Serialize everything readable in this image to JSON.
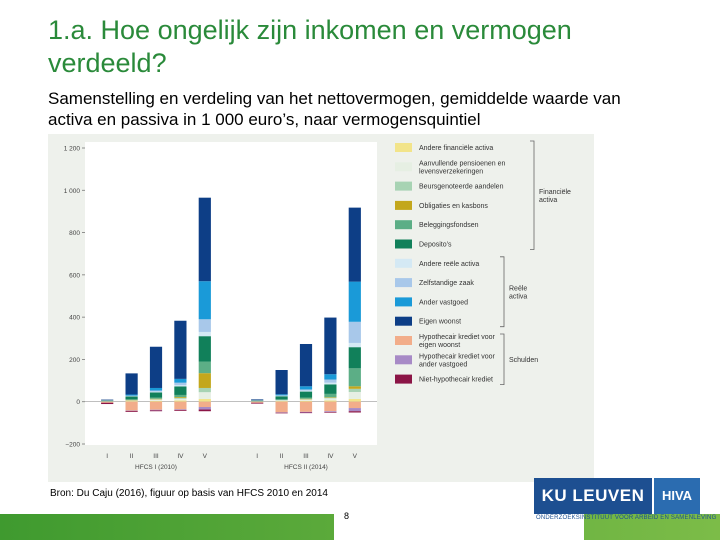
{
  "slide": {
    "title": "1.a. Hoe ongelijk zijn inkomen en vermogen verdeeld?",
    "subtitle": "Samenstelling en verdeling van het nettovermogen, gemiddelde waarde van activa en passiva in 1 000 euro’s, naar vermogensquintiel",
    "source": "Bron: Du Caju (2016), figuur op basis van HFCS 2010 en 2014",
    "page_number": "8",
    "logo_main": "KU LEUVEN",
    "logo_side": "HIVA",
    "logo_subtext": "ONDERZOEKSINSTITUUT VOOR ARBEID EN SAMENLEVING"
  },
  "chart_data": {
    "type": "bar",
    "stacked": true,
    "ylim": [
      -200,
      1200
    ],
    "yticks": [
      -200,
      0,
      200,
      400,
      600,
      800,
      1000,
      1200
    ],
    "ytick_labels": [
      "−200",
      "0",
      "200",
      "400",
      "600",
      "800",
      "1 000",
      "1 200"
    ],
    "groups": [
      {
        "label": "HFCS I (2010)",
        "categories": [
          "I",
          "II",
          "III",
          "IV",
          "V"
        ]
      },
      {
        "label": "HFCS II (2014)",
        "categories": [
          "I",
          "II",
          "III",
          "IV",
          "V"
        ]
      }
    ],
    "series": [
      {
        "name": "Andere financiële activa",
        "color": "#f2e48a",
        "values": [
          1,
          3,
          4,
          6,
          13,
          1,
          3,
          4,
          6,
          13
        ]
      },
      {
        "name": "Aanvullende pensioenen en levensverzekeringen",
        "color": "#e6efe3",
        "values": [
          1,
          4,
          6,
          8,
          32,
          1,
          5,
          7,
          10,
          33
        ]
      },
      {
        "name": "Beursgenoteerde aandelen",
        "color": "#a7d3b3",
        "values": [
          0,
          1,
          2,
          4,
          20,
          0,
          1,
          2,
          4,
          15
        ]
      },
      {
        "name": "Obligaties en kasbons",
        "color": "#c3a71c",
        "values": [
          0,
          1,
          2,
          4,
          70,
          0,
          0,
          1,
          2,
          12
        ]
      },
      {
        "name": "Beleggingsfondsen",
        "color": "#5cae86",
        "values": [
          0,
          2,
          5,
          10,
          55,
          0,
          2,
          6,
          15,
          85
        ]
      },
      {
        "name": "Deposito’s",
        "color": "#11805a",
        "values": [
          4,
          14,
          25,
          40,
          120,
          4,
          15,
          28,
          45,
          100
        ]
      },
      {
        "name": "Andere reële activa",
        "color": "#d4e9f4",
        "values": [
          1,
          2,
          4,
          6,
          20,
          1,
          2,
          5,
          8,
          20
        ]
      },
      {
        "name": "Zelfstandige zaak",
        "color": "#a8c8ea",
        "values": [
          0,
          2,
          5,
          12,
          60,
          0,
          2,
          5,
          15,
          100
        ]
      },
      {
        "name": "Ander vastgoed",
        "color": "#1a9ad8",
        "values": [
          0,
          5,
          12,
          18,
          180,
          0,
          5,
          15,
          25,
          190
        ]
      },
      {
        "name": "Eigen woonst",
        "color": "#0d3e86",
        "values": [
          3,
          100,
          195,
          275,
          395,
          4,
          115,
          200,
          268,
          350
        ]
      },
      {
        "name": "Hypothecair krediet voor eigen woonst",
        "color": "#f2ad8a",
        "values": [
          -5,
          -42,
          -38,
          -36,
          -25,
          -5,
          -50,
          -48,
          -45,
          -30
        ]
      },
      {
        "name": "Hypothecair krediet voor ander vastgoed",
        "color": "#a78ac6",
        "values": [
          0,
          -2,
          -3,
          -3,
          -12,
          0,
          -2,
          -3,
          -4,
          -15
        ]
      },
      {
        "name": "Niet-hypothecair krediet",
        "color": "#8b1546",
        "values": [
          -6,
          -4,
          -4,
          -4,
          -8,
          -4,
          -3,
          -3,
          -3,
          -6
        ]
      }
    ],
    "legend_groups": [
      {
        "label": "Financiële activa",
        "from": 0,
        "to": 5
      },
      {
        "label": "Reële activa",
        "from": 6,
        "to": 9
      },
      {
        "label": "Schulden",
        "from": 10,
        "to": 12
      }
    ],
    "legend_position": "right",
    "grid": false
  }
}
